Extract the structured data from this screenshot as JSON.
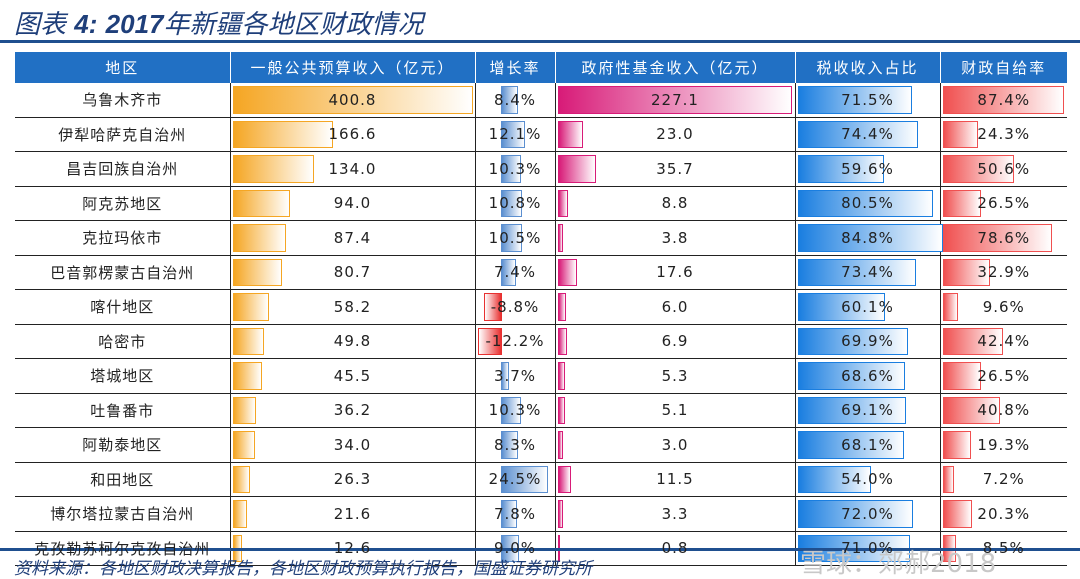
{
  "title": {
    "prefix": "图表",
    "num": "4:",
    "year": "2017",
    "rest": "年新疆各地区财政情况"
  },
  "headers": [
    "地区",
    "一般公共预算收入（亿元）",
    "增长率",
    "政府性基金收入（亿元）",
    "税收收入占比",
    "财政自给率"
  ],
  "colors": {
    "header": "#2170c4",
    "budget": "#f5a623",
    "growth_pos": "#5b8fd0",
    "growth_neg": "#e83030",
    "fund": "#d81b78",
    "tax": "#1a7ee0",
    "self": "#f05050"
  },
  "rows": [
    [
      "乌鲁木齐市",
      "400.8",
      "8.4%",
      "227.1",
      "71.5%",
      "87.4%"
    ],
    [
      "伊犁哈萨克自治州",
      "166.6",
      "12.1%",
      "23.0",
      "74.4%",
      "24.3%"
    ],
    [
      "昌吉回族自治州",
      "134.0",
      "10.3%",
      "35.7",
      "59.6%",
      "50.6%"
    ],
    [
      "阿克苏地区",
      "94.0",
      "10.8%",
      "8.8",
      "80.5%",
      "26.5%"
    ],
    [
      "克拉玛依市",
      "87.4",
      "10.5%",
      "3.8",
      "84.8%",
      "78.6%"
    ],
    [
      "巴音郭楞蒙古自治州",
      "80.7",
      "7.4%",
      "17.6",
      "73.4%",
      "32.9%"
    ],
    [
      "喀什地区",
      "58.2",
      "-8.8%",
      "6.0",
      "60.1%",
      "9.6%"
    ],
    [
      "哈密市",
      "49.8",
      "-12.2%",
      "6.9",
      "69.9%",
      "42.4%"
    ],
    [
      "塔城地区",
      "45.5",
      "3.7%",
      "5.3",
      "68.6%",
      "26.5%"
    ],
    [
      "吐鲁番市",
      "36.2",
      "10.3%",
      "5.1",
      "69.1%",
      "40.8%"
    ],
    [
      "阿勒泰地区",
      "34.0",
      "8.3%",
      "3.0",
      "68.1%",
      "19.3%"
    ],
    [
      "和田地区",
      "26.3",
      "24.5%",
      "11.5",
      "54.0%",
      "7.2%"
    ],
    [
      "博尔塔拉蒙古自治州",
      "21.6",
      "7.8%",
      "3.3",
      "72.0%",
      "20.3%"
    ],
    [
      "克孜勒苏柯尔克孜自治州",
      "12.6",
      "9.0%",
      "0.8",
      "71.0%",
      "8.5%"
    ]
  ],
  "source": "资料来源：各地区财政决算报告，各地区财政预算执行报告，国盛证券研究所",
  "watermark": "雪球：郊郝2018"
}
